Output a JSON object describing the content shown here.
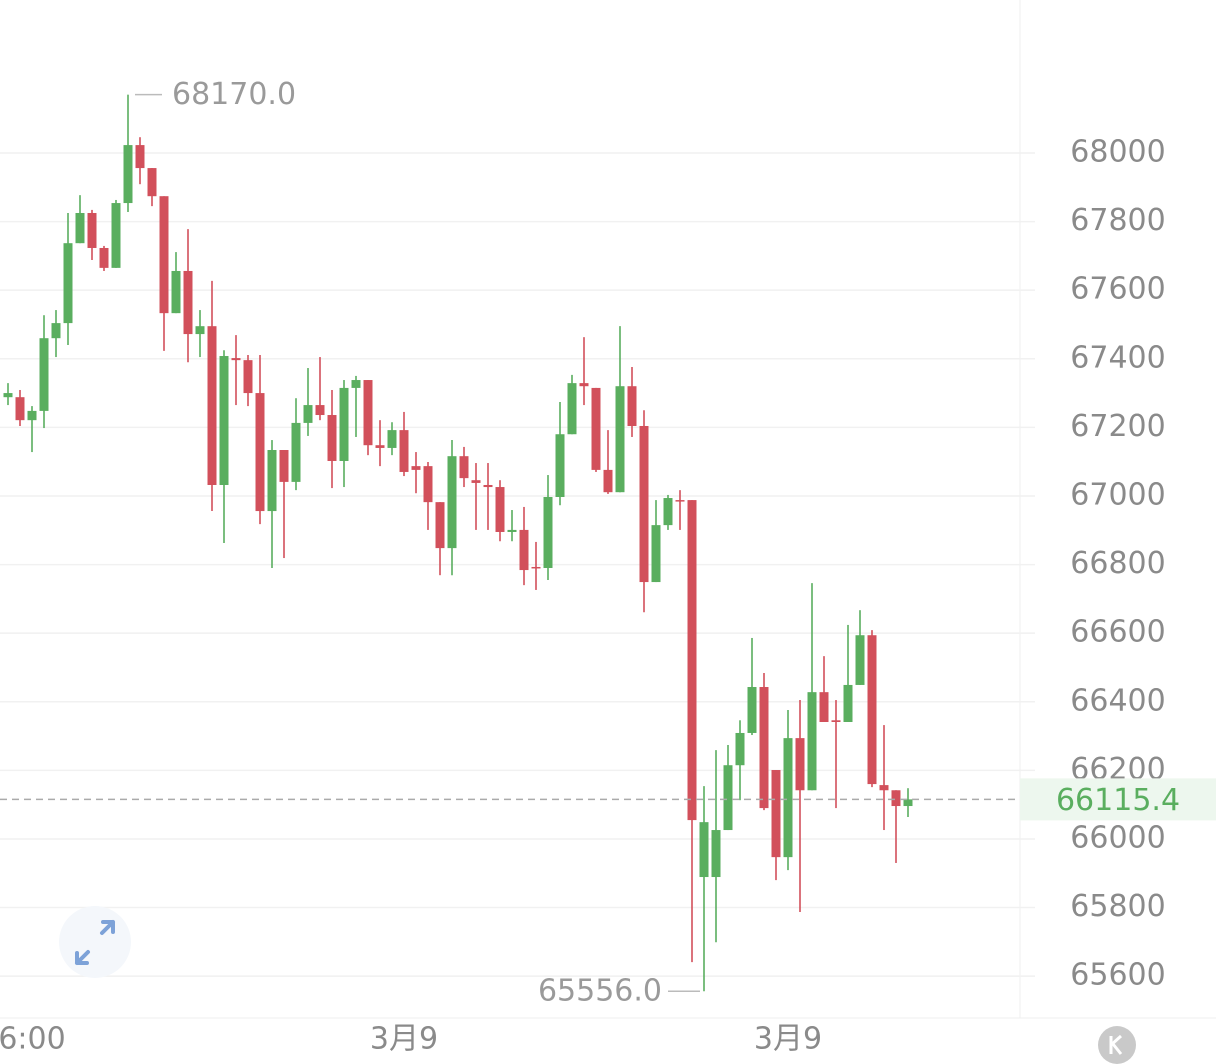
{
  "chart_data": {
    "type": "candlestick",
    "categories": [
      null,
      null,
      "6:00",
      null,
      null,
      null,
      null,
      null,
      null,
      null,
      null,
      null,
      null,
      null,
      null,
      null,
      null,
      null,
      null,
      null,
      null,
      null,
      null,
      null,
      null,
      null,
      null,
      null,
      null,
      null,
      null,
      null,
      null,
      "3月9",
      null,
      null,
      null,
      null,
      null,
      null,
      null,
      null,
      null,
      null,
      null,
      null,
      null,
      null,
      null,
      null,
      null,
      null,
      null,
      null,
      null,
      null,
      null,
      null,
      null,
      null,
      null,
      null,
      null,
      null,
      null,
      "3月9",
      null,
      null,
      null,
      null,
      null,
      null,
      null,
      null,
      null,
      null
    ],
    "open": [
      67288,
      67288,
      67221,
      67248,
      67460,
      67504,
      67737,
      67825,
      67723,
      67665,
      67854,
      68023,
      67956,
      67874,
      67533,
      67656,
      67472,
      67495,
      67032,
      67402,
      67396,
      67300,
      66956,
      67134,
      67041,
      67213,
      67265,
      67236,
      67102,
      67315,
      67338,
      67148,
      67140,
      67192,
      67087,
      67087,
      66982,
      66848,
      67116,
      67046,
      67032,
      67026,
      66895,
      66901,
      66793,
      66790,
      66997,
      67180,
      67329,
      67315,
      67076,
      67011,
      67320,
      67204,
      66749,
      66915,
      66988,
      66988,
      65889,
      65889,
      66026,
      66215,
      66309,
      66443,
      66201,
      65947,
      66294,
      66142,
      66428,
      66346,
      66341,
      66449,
      66594,
      66157,
      66142,
      66096
    ],
    "high": [
      67329,
      67309,
      67262,
      67527,
      67542,
      67825,
      67877,
      67834,
      67729,
      67863,
      68170,
      68046,
      67956,
      67874,
      67711,
      67778,
      67542,
      67627,
      67425,
      67469,
      67411,
      67411,
      67163,
      67134,
      67285,
      67373,
      67405,
      67309,
      67338,
      67350,
      67338,
      67221,
      67215,
      67245,
      67128,
      67099,
      66982,
      67163,
      67143,
      67096,
      67096,
      67046,
      66959,
      66968,
      66866,
      67061,
      67274,
      67353,
      67463,
      67315,
      67192,
      67495,
      67376,
      67250,
      66988,
      67003,
      67017,
      66988,
      66154,
      66259,
      66274,
      66346,
      66586,
      66484,
      66201,
      66376,
      66405,
      66746,
      66533,
      66405,
      66624,
      66667,
      66609,
      66332,
      66142,
      66148
    ],
    "low": [
      67265,
      67204,
      67128,
      67198,
      67405,
      67440,
      67737,
      67688,
      67656,
      67665,
      67828,
      67909,
      67845,
      67423,
      67533,
      67390,
      67405,
      66956,
      66863,
      67265,
      67262,
      66918,
      66790,
      66819,
      67017,
      67175,
      67221,
      67023,
      67026,
      67172,
      67119,
      67087,
      67119,
      67058,
      67008,
      66901,
      66769,
      66769,
      67026,
      66901,
      66901,
      66868,
      66868,
      66740,
      66726,
      66755,
      66973,
      67180,
      67265,
      67070,
      67006,
      67011,
      67172,
      66661,
      66749,
      66901,
      66901,
      65641,
      65556,
      65699,
      66026,
      66113,
      66303,
      66084,
      65880,
      65909,
      65787,
      66142,
      66341,
      66090,
      66341,
      66449,
      66151,
      66026,
      65930,
      66064
    ],
    "close": [
      67300,
      67221,
      67248,
      67460,
      67504,
      67737,
      67825,
      67723,
      67665,
      67854,
      68023,
      67956,
      67874,
      67533,
      67656,
      67472,
      67495,
      67032,
      67408,
      67396,
      67300,
      66956,
      67134,
      67041,
      67213,
      67265,
      67236,
      67102,
      67315,
      67338,
      67148,
      67140,
      67192,
      67070,
      67076,
      66982,
      66848,
      67116,
      67052,
      67038,
      67026,
      66895,
      66901,
      66784,
      66790,
      66997,
      67180,
      67329,
      67320,
      67076,
      67011,
      67320,
      67204,
      66749,
      66915,
      66994,
      66985,
      66055,
      66049,
      66026,
      66215,
      66309,
      66443,
      66090,
      65947,
      66294,
      66142,
      66428,
      66341,
      66341,
      66449,
      66594,
      66160,
      66142,
      66096,
      66115.4
    ],
    "up_color": "#5aae5f",
    "down_color": "#d2505b",
    "ylim": [
      65478,
      68446
    ],
    "yticks": [
      65600,
      65800,
      66000,
      66200,
      66400,
      66600,
      66800,
      67000,
      67200,
      67400,
      67600,
      67800,
      68000
    ],
    "grid": true,
    "last_price": 66115.4,
    "max_label": {
      "value": 68170,
      "label": "68170.0"
    },
    "min_label": {
      "value": 65556,
      "label": "65556.0"
    }
  }
}
